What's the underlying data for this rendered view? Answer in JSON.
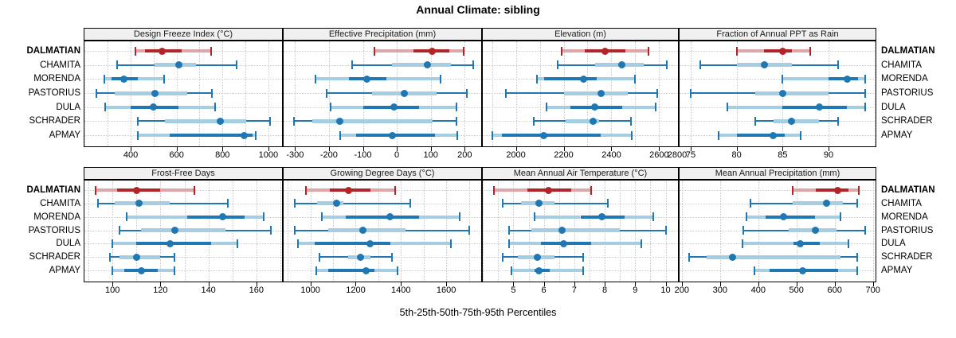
{
  "title": "Annual Climate: sibling",
  "caption": "5th-25th-50th-75th-95th Percentiles",
  "chart_data": {
    "type": "dotplot",
    "subtype": "percentile-whisker",
    "percentiles": [
      5,
      25,
      50,
      75,
      95
    ],
    "legend_note": "dot = median, thick segment = 25th-75th, light segment/line with end caps = 5th-95th",
    "categories": [
      "DALMATIAN",
      "CHAMITA",
      "MORENDA",
      "PASTORIUS",
      "DULA",
      "SCHRADER",
      "APMAY"
    ],
    "highlight_category": "DALMATIAN",
    "colors": {
      "blue": "#1f77b4",
      "blue_light": "#a6cee3",
      "red": "#b22428",
      "red_light": "#dfa6a8",
      "grid": "#c9c9c9",
      "strip_bg": "#f0f0f0",
      "panel_border": "#000000",
      "text": "#000000"
    },
    "layout_hint": "2 rows x 4 columns of panels, free x scales, category labels on both left and right sides",
    "panels": [
      {
        "title": "Design Freeze Index (°C)",
        "ticks": [
          400,
          600,
          800,
          1000
        ],
        "range": [
          195,
          1063
        ],
        "grid_step": 100,
        "values": [
          [
            420,
            462,
            537,
            622,
            752
          ],
          [
            340,
            505,
            610,
            683,
            862
          ],
          [
            285,
            315,
            370,
            430,
            545
          ],
          [
            250,
            330,
            505,
            645,
            755
          ],
          [
            290,
            400,
            500,
            608,
            768
          ],
          [
            430,
            548,
            790,
            905,
            1008
          ],
          [
            430,
            570,
            893,
            932,
            945
          ]
        ]
      },
      {
        "title": "Effective Precipitation (mm)",
        "ticks": [
          -300,
          -200,
          -100,
          0,
          100,
          200
        ],
        "range": [
          -336,
          251
        ],
        "grid_step": 100,
        "values": [
          [
            -65,
            50,
            105,
            155,
            198
          ],
          [
            -131,
            -15,
            90,
            160,
            225
          ],
          [
            -239,
            -141,
            -88,
            -30,
            129
          ],
          [
            -207,
            -73,
            22,
            118,
            206
          ],
          [
            -195,
            -98,
            -8,
            65,
            177
          ],
          [
            -303,
            -250,
            -169,
            106,
            177
          ],
          [
            -167,
            -120,
            -14,
            112,
            179
          ]
        ]
      },
      {
        "title": "Elevation (m)",
        "ticks": [
          2000,
          2200,
          2400,
          2600,
          2800
        ],
        "range": [
          1858,
          2682
        ],
        "grid_step": 100,
        "values": [
          [
            2190,
            2290,
            2375,
            2460,
            2555
          ],
          [
            2175,
            2333,
            2444,
            2536,
            2631
          ],
          [
            2088,
            2119,
            2283,
            2338,
            2497
          ],
          [
            1958,
            2200,
            2358,
            2469,
            2591
          ],
          [
            2128,
            2228,
            2330,
            2444,
            2586
          ],
          [
            2074,
            2208,
            2324,
            2347,
            2483
          ],
          [
            1902,
            1941,
            2117,
            2354,
            2484
          ]
        ]
      },
      {
        "title": "Fraction of Annual PPT as Rain",
        "ticks": [
          75,
          80,
          85,
          90
        ],
        "range": [
          73.7,
          95.2
        ],
        "grid_step": 5,
        "values": [
          [
            80,
            83,
            85,
            86,
            88
          ],
          [
            76,
            80,
            83,
            86,
            91
          ],
          [
            85,
            90,
            92,
            93.2,
            94
          ],
          [
            75,
            82,
            85,
            90,
            94
          ],
          [
            79,
            85,
            89,
            92,
            94
          ],
          [
            82,
            84,
            86,
            89,
            91
          ],
          [
            78,
            80,
            84,
            85.2,
            87
          ]
        ]
      },
      {
        "title": "Frost-Free Days",
        "ticks": [
          100,
          120,
          140,
          160
        ],
        "range": [
          88,
          171
        ],
        "grid_step": 10,
        "values": [
          [
            93,
            102,
            110,
            120,
            134
          ],
          [
            94,
            101,
            111,
            124,
            148
          ],
          [
            106,
            131,
            146,
            155,
            163
          ],
          [
            103,
            112,
            126,
            147,
            166
          ],
          [
            100,
            110,
            124,
            141,
            152
          ],
          [
            99,
            103,
            110,
            120,
            126
          ],
          [
            100,
            105,
            112,
            119,
            126
          ]
        ]
      },
      {
        "title": "Growing Degree Days (°C)",
        "ticks": [
          1000,
          1200,
          1400,
          1600
        ],
        "range": [
          878,
          1758
        ],
        "grid_step": 100,
        "values": [
          [
            980,
            1085,
            1170,
            1265,
            1375
          ],
          [
            930,
            1030,
            1115,
            1147,
            1440
          ],
          [
            1050,
            1155,
            1350,
            1480,
            1660
          ],
          [
            930,
            1080,
            1230,
            1420,
            1700
          ],
          [
            945,
            1020,
            1262,
            1353,
            1620
          ],
          [
            1040,
            1165,
            1220,
            1265,
            1360
          ],
          [
            1025,
            1080,
            1245,
            1282,
            1385
          ]
        ]
      },
      {
        "title": "Mean Annual Air Temperature (°C)",
        "ticks": [
          5,
          6,
          7,
          8,
          9,
          10
        ],
        "range": [
          3.97,
          10.43
        ],
        "grid_step": 0.5,
        "values": [
          [
            4.35,
            5.45,
            6.15,
            6.9,
            7.55
          ],
          [
            4.65,
            5.25,
            5.85,
            6.35,
            8.1
          ],
          [
            5.7,
            7.2,
            7.9,
            8.65,
            9.6
          ],
          [
            4.85,
            5.6,
            6.6,
            8.5,
            10.0
          ],
          [
            4.85,
            5.9,
            6.65,
            7.55,
            9.2
          ],
          [
            4.65,
            5.15,
            5.8,
            6.35,
            7.3
          ],
          [
            4.95,
            5.7,
            5.85,
            6.2,
            7.3
          ]
        ]
      },
      {
        "title": "Mean Annual Precipitation (mm)",
        "ticks": [
          200,
          300,
          400,
          500,
          600,
          700
        ],
        "range": [
          192,
          709
        ],
        "grid_step": 100,
        "values": [
          [
            490,
            550,
            607,
            636,
            664
          ],
          [
            380,
            490,
            578,
            622,
            660
          ],
          [
            370,
            420,
            466,
            548,
            615
          ],
          [
            360,
            480,
            550,
            605,
            680
          ],
          [
            358,
            492,
            510,
            560,
            637
          ],
          [
            220,
            265,
            333,
            615,
            660
          ],
          [
            390,
            430,
            516,
            608,
            658
          ]
        ]
      }
    ]
  }
}
